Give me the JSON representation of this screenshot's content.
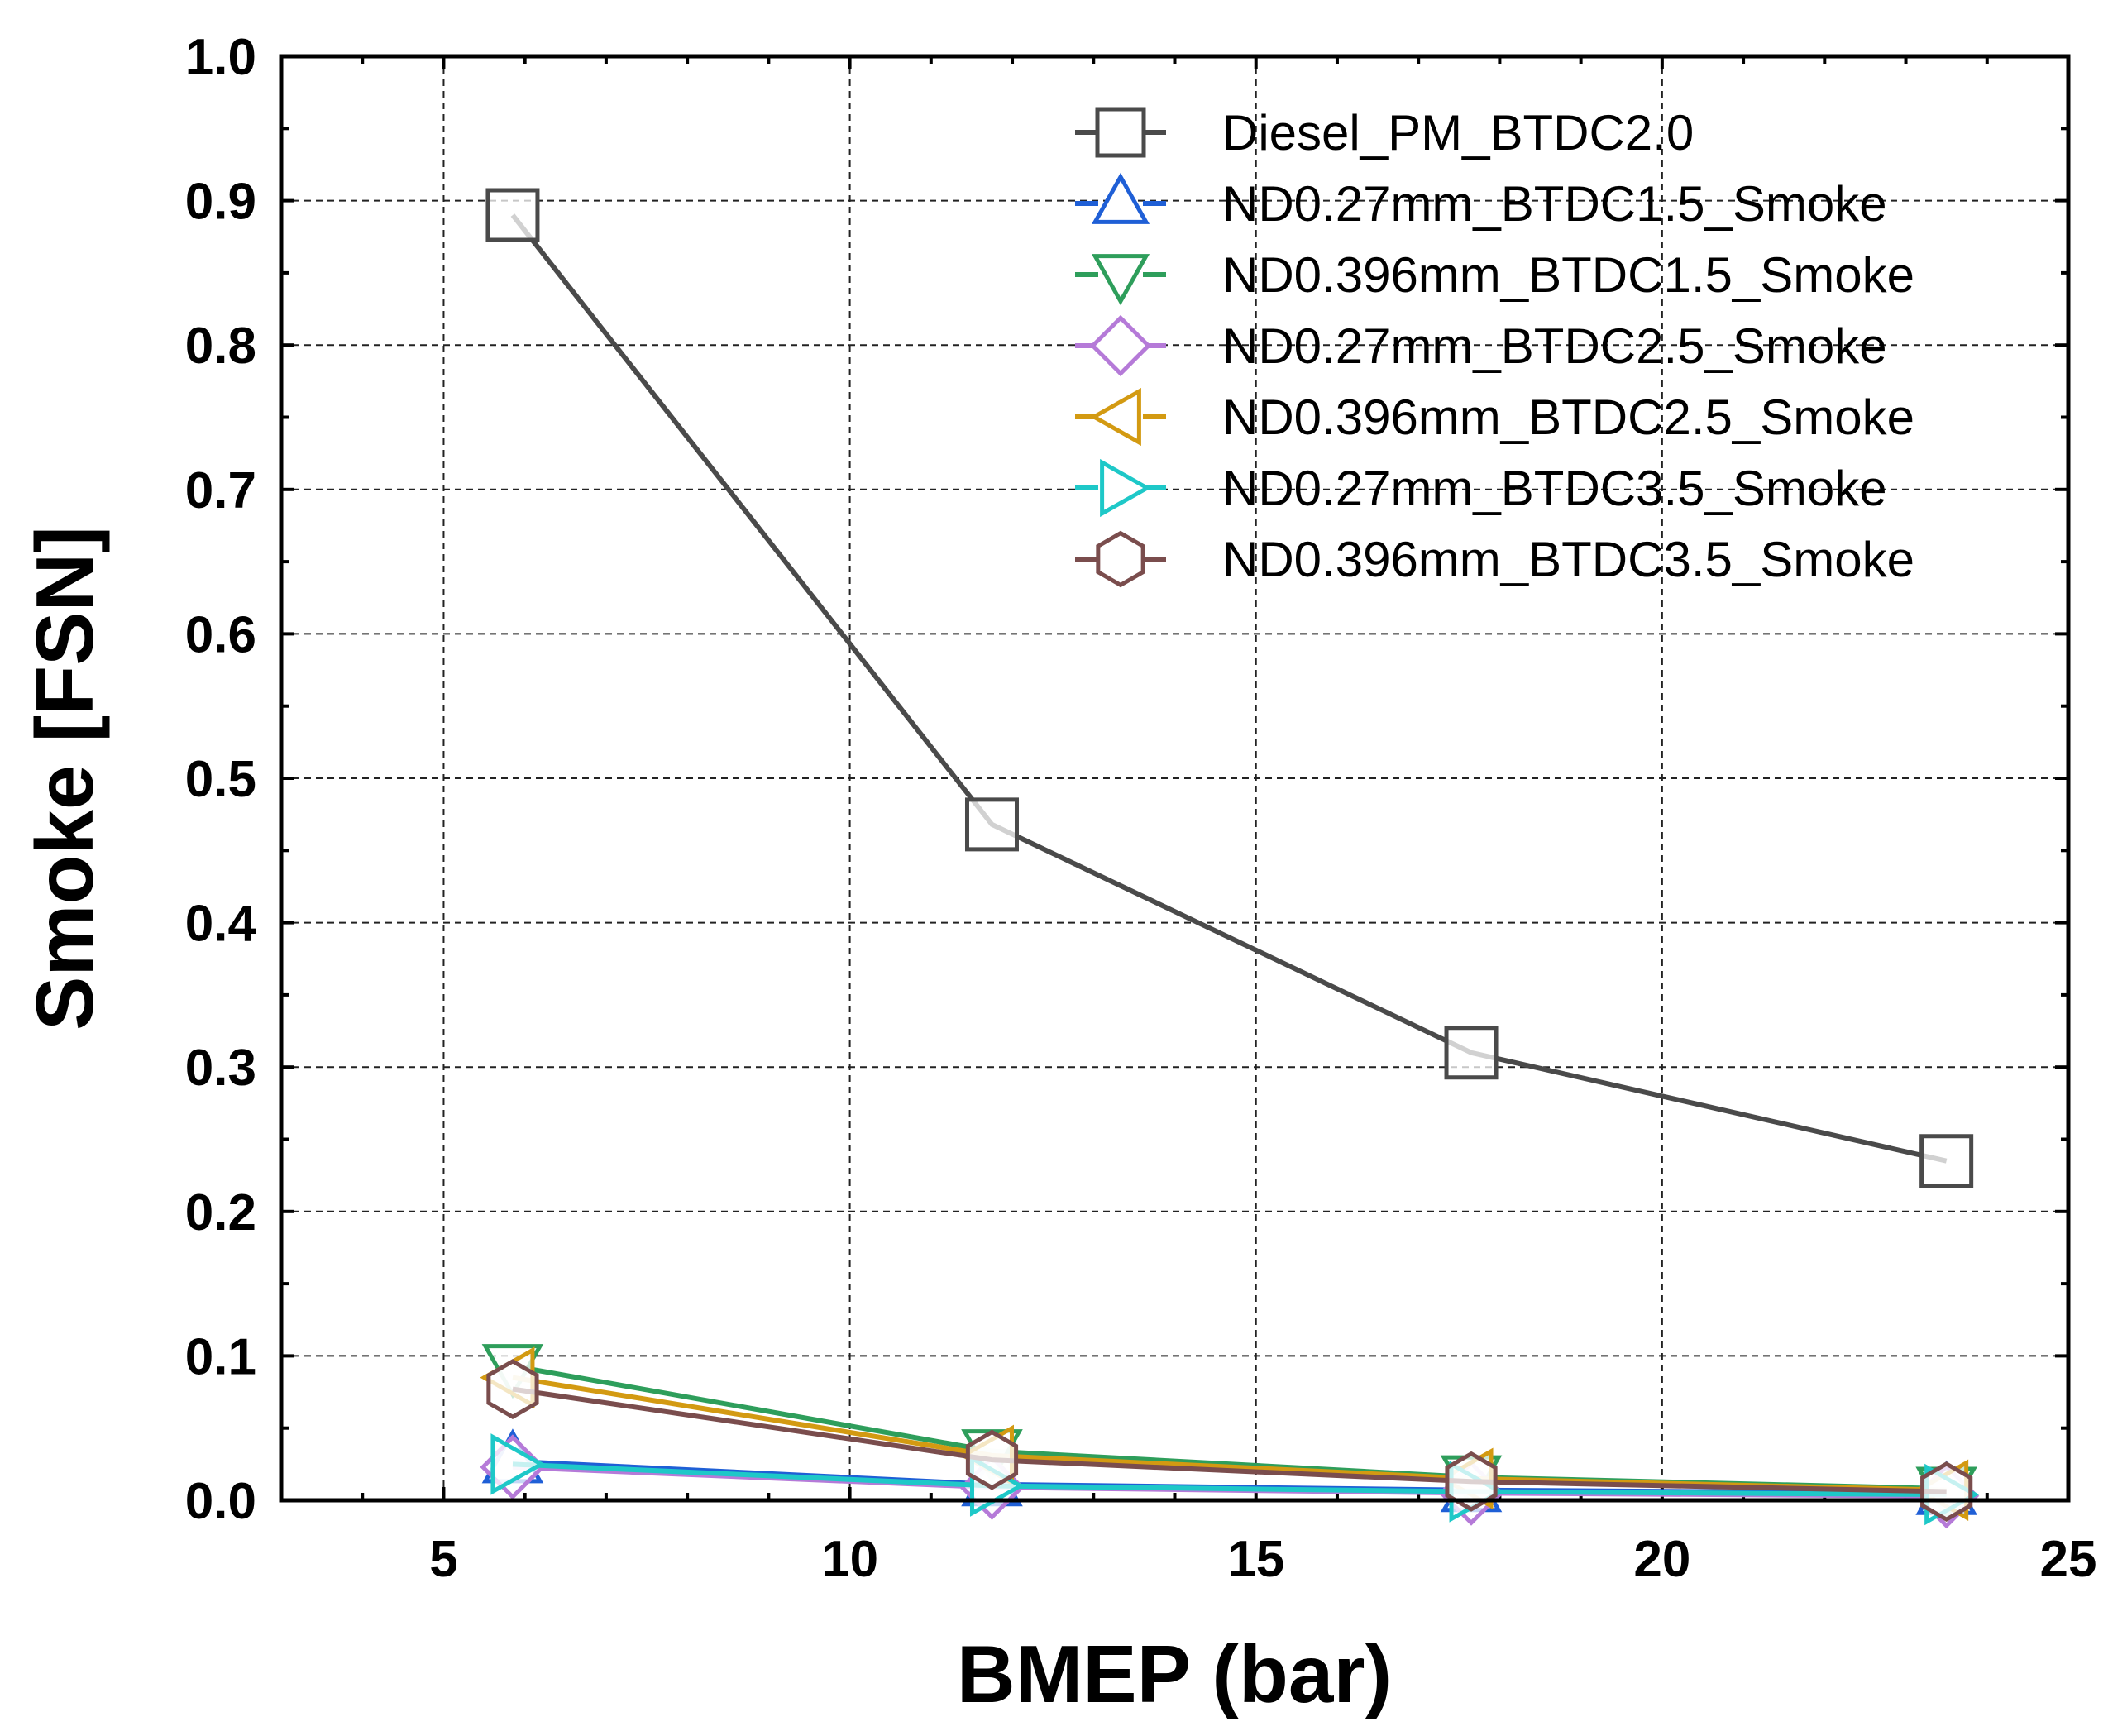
{
  "chart_data": {
    "type": "line",
    "xlabel": "BMEP (bar)",
    "ylabel": "Smoke [FSN]",
    "xlim": [
      3,
      25
    ],
    "ylim": [
      0,
      1.0
    ],
    "x_ticks": [
      "5",
      "10",
      "15",
      "20",
      "25"
    ],
    "x_tick_values": [
      5,
      10,
      15,
      20,
      25
    ],
    "y_ticks": [
      "0.0",
      "0.1",
      "0.2",
      "0.3",
      "0.4",
      "0.5",
      "0.6",
      "0.7",
      "0.8",
      "0.9",
      "1.0"
    ],
    "y_tick_values": [
      0,
      0.1,
      0.2,
      0.3,
      0.4,
      0.5,
      0.6,
      0.7,
      0.8,
      0.9,
      1.0
    ],
    "grid": true,
    "legend_position": "top-right",
    "series": [
      {
        "name": "Diesel_PM_BTDC2.0",
        "marker": "square",
        "color": "#4a4a4a",
        "x": [
          5.85,
          11.75,
          17.65,
          23.5
        ],
        "y": [
          0.89,
          0.468,
          0.31,
          0.235
        ]
      },
      {
        "name": "ND0.27mm_BTDC1.5_Smoke",
        "marker": "triangle-up",
        "color": "#1f5fd6",
        "x": [
          5.85,
          11.75,
          17.65,
          23.5
        ],
        "y": [
          0.027,
          0.011,
          0.007,
          0.005
        ]
      },
      {
        "name": "ND0.396mm_BTDC1.5_Smoke",
        "marker": "triangle-down",
        "color": "#2e9e5b",
        "x": [
          5.85,
          11.75,
          17.65,
          23.5
        ],
        "y": [
          0.093,
          0.034,
          0.016,
          0.008
        ]
      },
      {
        "name": "ND0.27mm_BTDC2.5_Smoke",
        "marker": "diamond",
        "color": "#b57ad8",
        "x": [
          5.85,
          11.75,
          17.65,
          23.5
        ],
        "y": [
          0.023,
          0.009,
          0.005,
          0.003
        ]
      },
      {
        "name": "ND0.396mm_BTDC2.5_Smoke",
        "marker": "triangle-left",
        "color": "#d39a12",
        "x": [
          5.85,
          11.75,
          17.65,
          23.5
        ],
        "y": [
          0.085,
          0.031,
          0.015,
          0.007
        ]
      },
      {
        "name": "ND0.27mm_BTDC3.5_Smoke",
        "marker": "triangle-right",
        "color": "#1ec8c8",
        "x": [
          5.85,
          11.75,
          17.65,
          23.5
        ],
        "y": [
          0.025,
          0.01,
          0.006,
          0.004
        ]
      },
      {
        "name": "ND0.396mm_BTDC3.5_Smoke",
        "marker": "hexagon",
        "color": "#7a4d4d",
        "x": [
          5.85,
          11.75,
          17.65,
          23.5
        ],
        "y": [
          0.077,
          0.028,
          0.013,
          0.006
        ]
      }
    ]
  }
}
